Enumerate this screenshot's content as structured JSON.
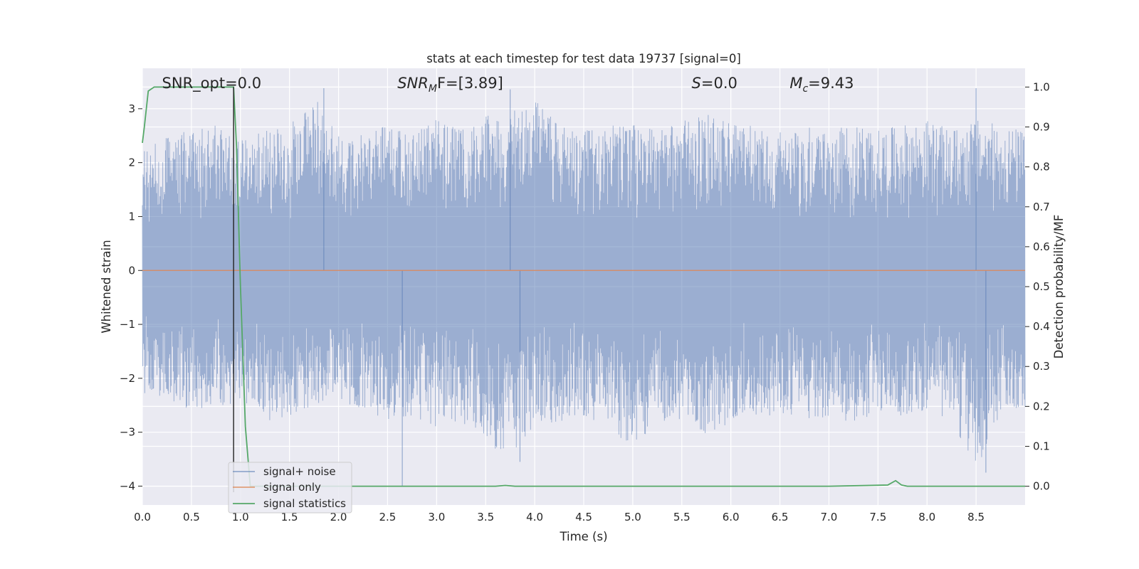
{
  "chart_data": {
    "type": "line",
    "title": "stats at each timestep for test data 19737 [signal=0]",
    "xlabel": "Time (s)",
    "ylabel_left": "Whitened strain",
    "ylabel_right": "Detection probability/MF",
    "xlim": [
      0.0,
      9.0
    ],
    "ylim_left": [
      -4.35,
      3.75
    ],
    "ylim_right": [
      -0.047,
      1.047
    ],
    "x_ticks": [
      "0.0",
      "0.5",
      "1.0",
      "1.5",
      "2.0",
      "2.5",
      "3.0",
      "3.5",
      "4.0",
      "4.5",
      "5.0",
      "5.5",
      "6.0",
      "6.5",
      "7.0",
      "7.5",
      "8.0",
      "8.5"
    ],
    "x_tick_values": [
      0.0,
      0.5,
      1.0,
      1.5,
      2.0,
      2.5,
      3.0,
      3.5,
      4.0,
      4.5,
      5.0,
      5.5,
      6.0,
      6.5,
      7.0,
      7.5,
      8.0,
      8.5
    ],
    "y_left_ticks": [
      "3",
      "2",
      "1",
      "0",
      "−1",
      "−2",
      "−3",
      "−4"
    ],
    "y_left_tick_values": [
      3,
      2,
      1,
      0,
      -1,
      -2,
      -3,
      -4
    ],
    "y_right_ticks": [
      "1.0",
      "0.9",
      "0.8",
      "0.7",
      "0.6",
      "0.5",
      "0.4",
      "0.3",
      "0.2",
      "0.1",
      "0.0"
    ],
    "y_right_tick_values": [
      1.0,
      0.9,
      0.8,
      0.7,
      0.6,
      0.5,
      0.4,
      0.3,
      0.2,
      0.1,
      0.0
    ],
    "grid": true,
    "legend_placement": "lower-left",
    "series": [
      {
        "name": "signal+ noise",
        "axis": "left",
        "color": "#4c72b0",
        "description_envelope": {
          "x": [
            0.0,
            0.25,
            0.5,
            0.75,
            1.0,
            1.25,
            1.5,
            1.75,
            2.0,
            2.25,
            2.5,
            2.75,
            3.0,
            3.25,
            3.5,
            3.75,
            4.0,
            4.25,
            4.5,
            4.75,
            5.0,
            5.25,
            5.5,
            5.75,
            6.0,
            6.25,
            6.5,
            6.75,
            7.0,
            7.25,
            7.5,
            7.75,
            8.0,
            8.25,
            8.5,
            8.75,
            9.0
          ],
          "upper": [
            2.2,
            2.5,
            2.6,
            2.7,
            2.4,
            2.6,
            2.7,
            3.3,
            2.5,
            2.6,
            2.7,
            2.6,
            2.8,
            2.6,
            2.9,
            2.9,
            3.3,
            2.7,
            2.6,
            2.7,
            2.7,
            2.6,
            2.8,
            2.9,
            2.8,
            2.7,
            2.6,
            2.7,
            2.6,
            2.7,
            2.6,
            2.7,
            2.8,
            2.6,
            2.8,
            2.7,
            2.6
          ],
          "lower": [
            -2.3,
            -2.4,
            -2.6,
            -2.5,
            -2.5,
            -2.8,
            -2.7,
            -2.5,
            -2.4,
            -2.6,
            -2.8,
            -2.7,
            -2.9,
            -2.8,
            -3.2,
            -3.5,
            -2.9,
            -2.8,
            -2.7,
            -2.9,
            -3.3,
            -2.8,
            -2.8,
            -3.1,
            -2.8,
            -2.7,
            -2.7,
            -2.8,
            -2.7,
            -2.9,
            -2.6,
            -2.7,
            -2.6,
            -2.8,
            -3.7,
            -2.7,
            -2.6
          ]
        },
        "spikes": [
          {
            "x": 1.85,
            "y": 3.38
          },
          {
            "x": 3.75,
            "y": 3.36
          },
          {
            "x": 8.5,
            "y": 3.38
          },
          {
            "x": 2.65,
            "y": -4.0
          },
          {
            "x": 3.85,
            "y": -3.55
          },
          {
            "x": 8.6,
            "y": -3.75
          }
        ]
      },
      {
        "name": "signal only",
        "axis": "left",
        "color": "#dd8452",
        "x": [
          0.0,
          9.0
        ],
        "values": [
          0.0,
          0.0
        ]
      },
      {
        "name": "signal statistics",
        "axis": "right",
        "color": "#55a868",
        "x": [
          0.0,
          0.02,
          0.06,
          0.12,
          0.2,
          0.5,
          0.88,
          0.93,
          0.96,
          1.0,
          1.05,
          1.1,
          1.15,
          1.2,
          2.0,
          3.0,
          3.6,
          3.7,
          3.8,
          4.0,
          5.0,
          6.0,
          7.0,
          7.6,
          7.68,
          7.74,
          7.8,
          8.0,
          9.0
        ],
        "values": [
          0.86,
          0.9,
          0.99,
          1.0,
          1.0,
          1.0,
          1.0,
          1.0,
          0.85,
          0.5,
          0.15,
          0.0,
          0.0,
          0.0,
          0.0,
          0.0,
          0.0,
          0.002,
          0.0,
          0.0,
          0.0,
          0.0,
          0.0,
          0.003,
          0.014,
          0.003,
          0.0,
          0.0,
          0.0
        ]
      }
    ],
    "vertical_marker": {
      "x": 0.93,
      "color": "#222222"
    },
    "annotations": [
      {
        "text": "SNR_opt=0.0",
        "x": 0.2
      },
      {
        "text_main": "SNR",
        "text_sub": "M",
        "text_rest": "F=[3.89]",
        "x": 2.6
      },
      {
        "text_main": "S",
        "text_sub": "",
        "text_rest": "=0.0",
        "x": 5.6
      },
      {
        "text_main": "M",
        "text_sub": "c",
        "text_rest": "=9.43",
        "x": 6.6
      }
    ]
  }
}
